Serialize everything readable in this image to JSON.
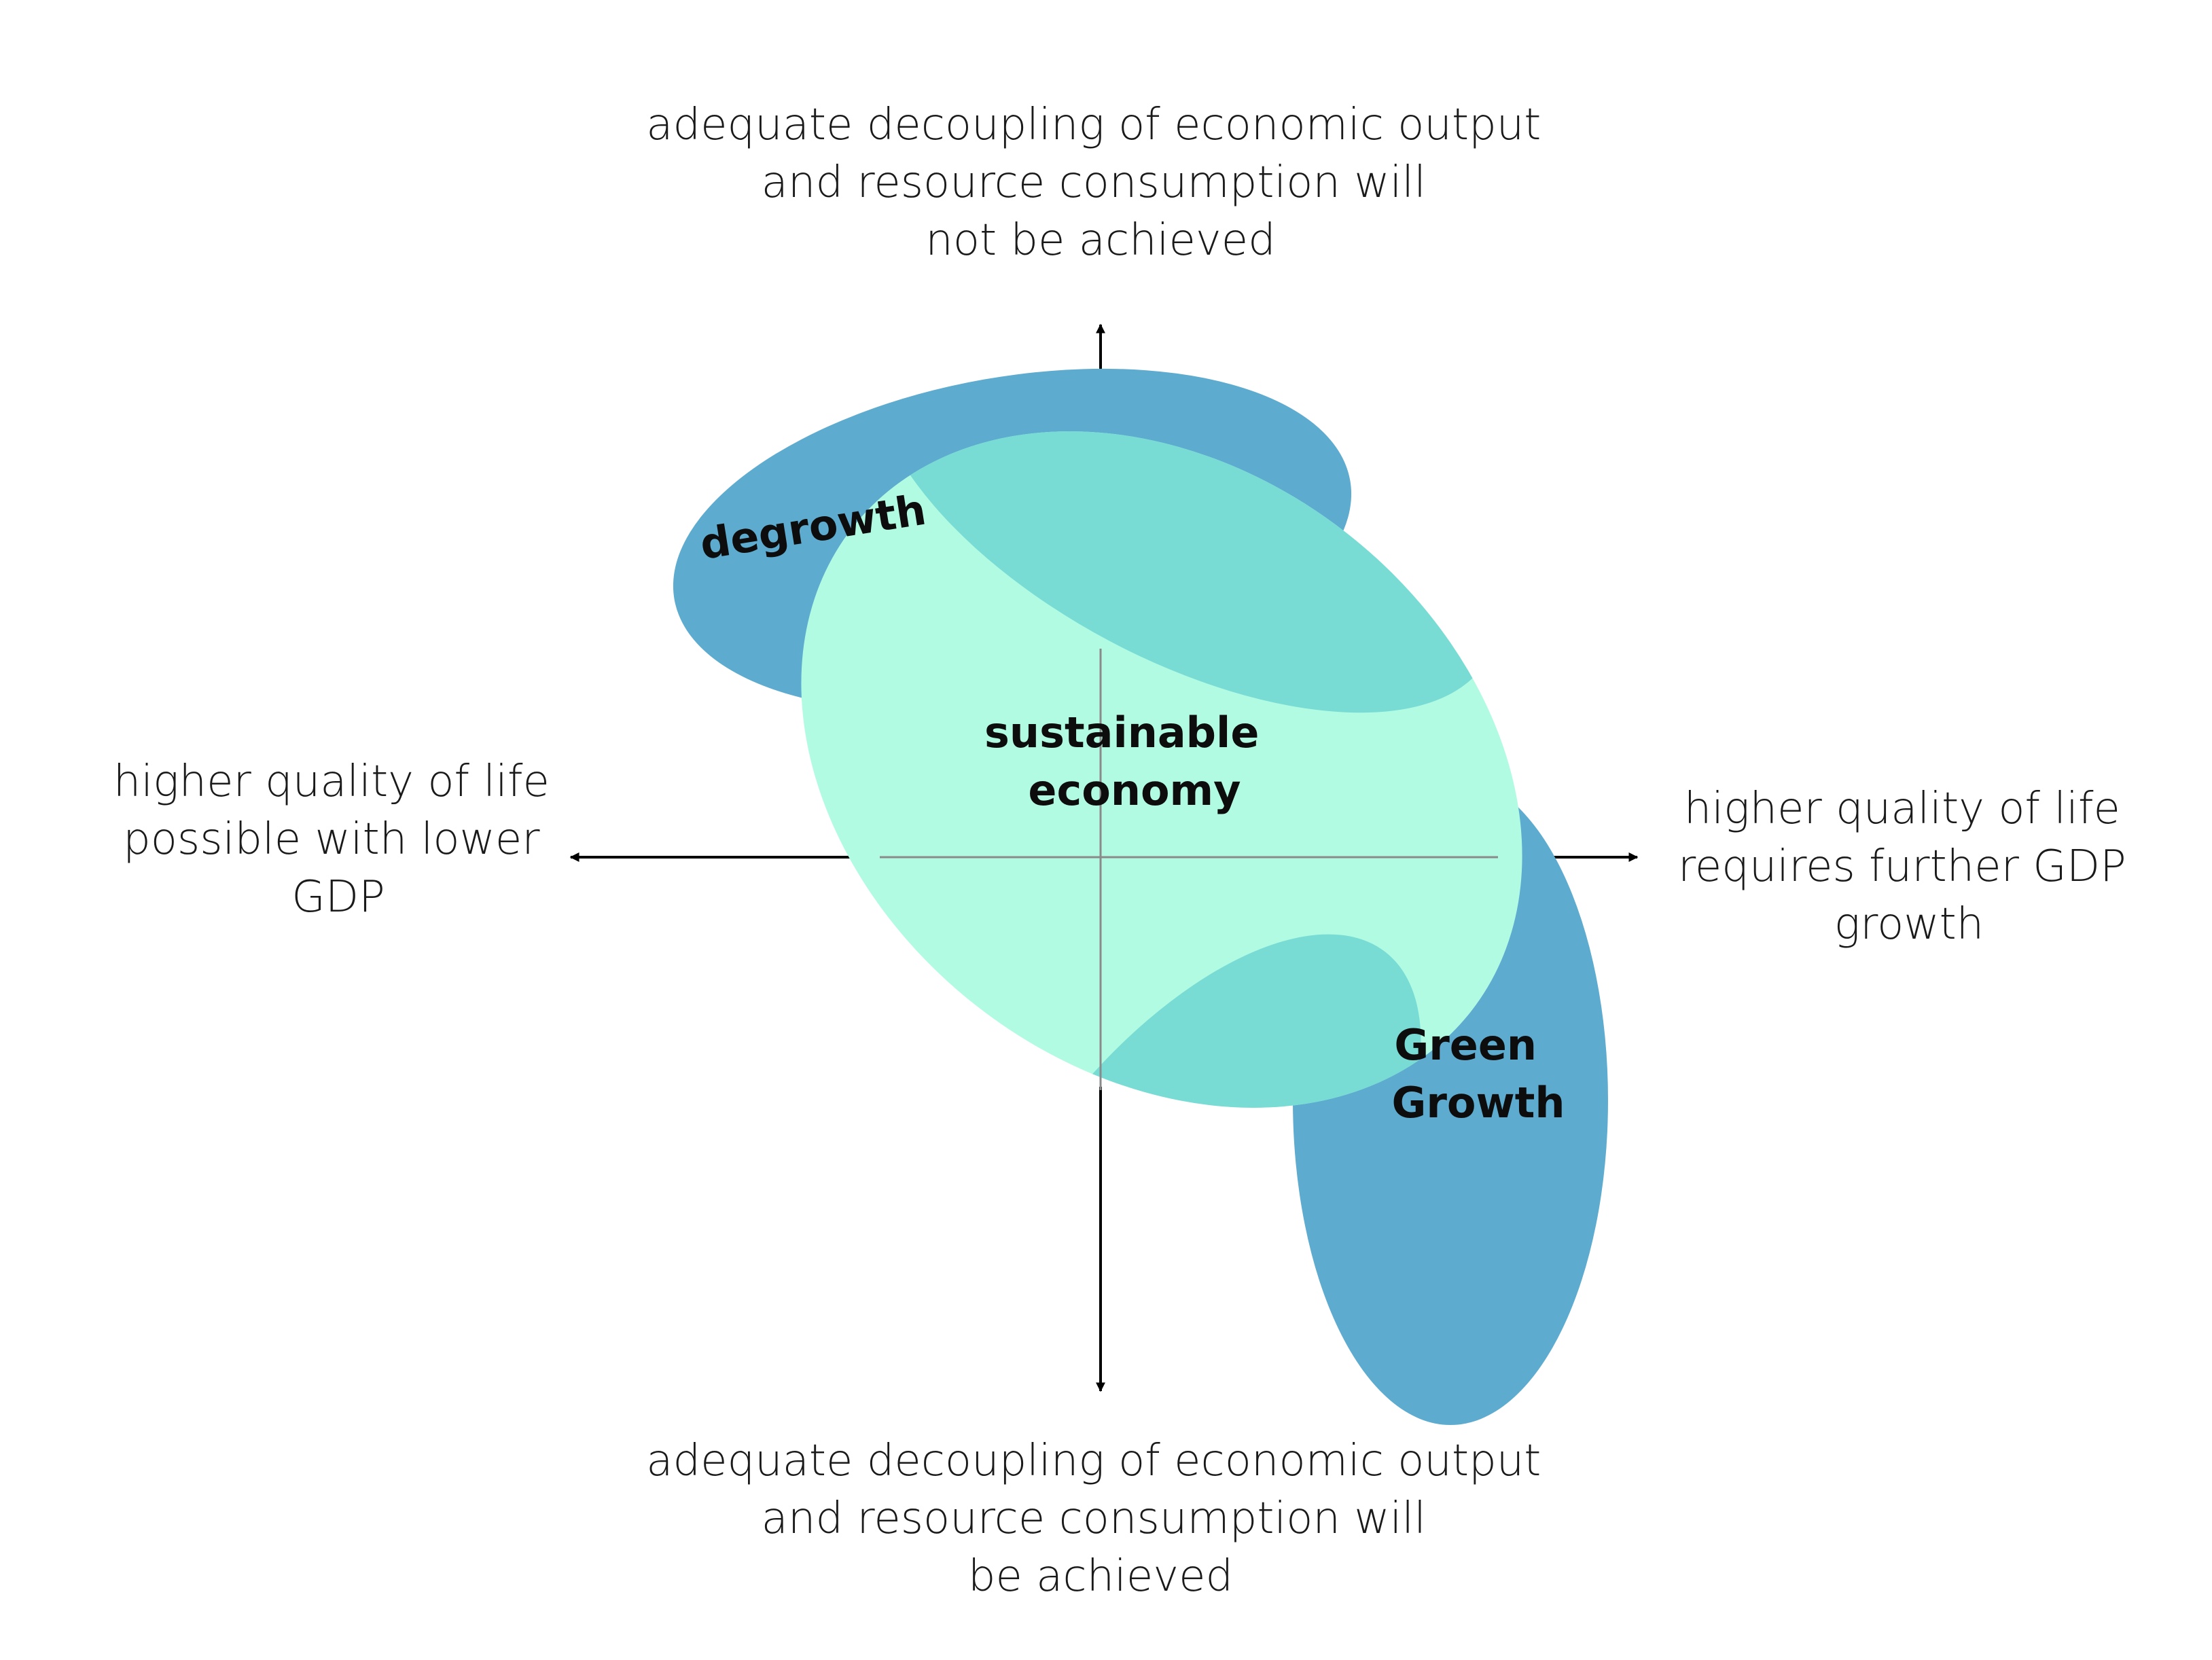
{
  "axes": {
    "top": [
      "adequate decoupling of economic output",
      "and resource consumption will",
      "not be achieved"
    ],
    "bottom": [
      "adequate decoupling of economic output",
      "and resource consumption will",
      "be achieved"
    ],
    "left": [
      "higher quality of life",
      "possible with lower",
      "GDP"
    ],
    "right": [
      "higher quality of life",
      "requires further GDP",
      "growth"
    ]
  },
  "regions": {
    "degrowth": [
      "degrowth"
    ],
    "sustainable": [
      "sustainable",
      "economy"
    ],
    "green_growth": [
      "Green",
      "Growth"
    ]
  },
  "colors": {
    "degrowth_fill": "#5eabd0",
    "sustainable_fill": "#b2fbe3",
    "overlap_fill": "#78dcd5",
    "green_growth_fill": "#5eabd0",
    "axis": "#000000",
    "inner_axis": "#8a8a8a"
  }
}
